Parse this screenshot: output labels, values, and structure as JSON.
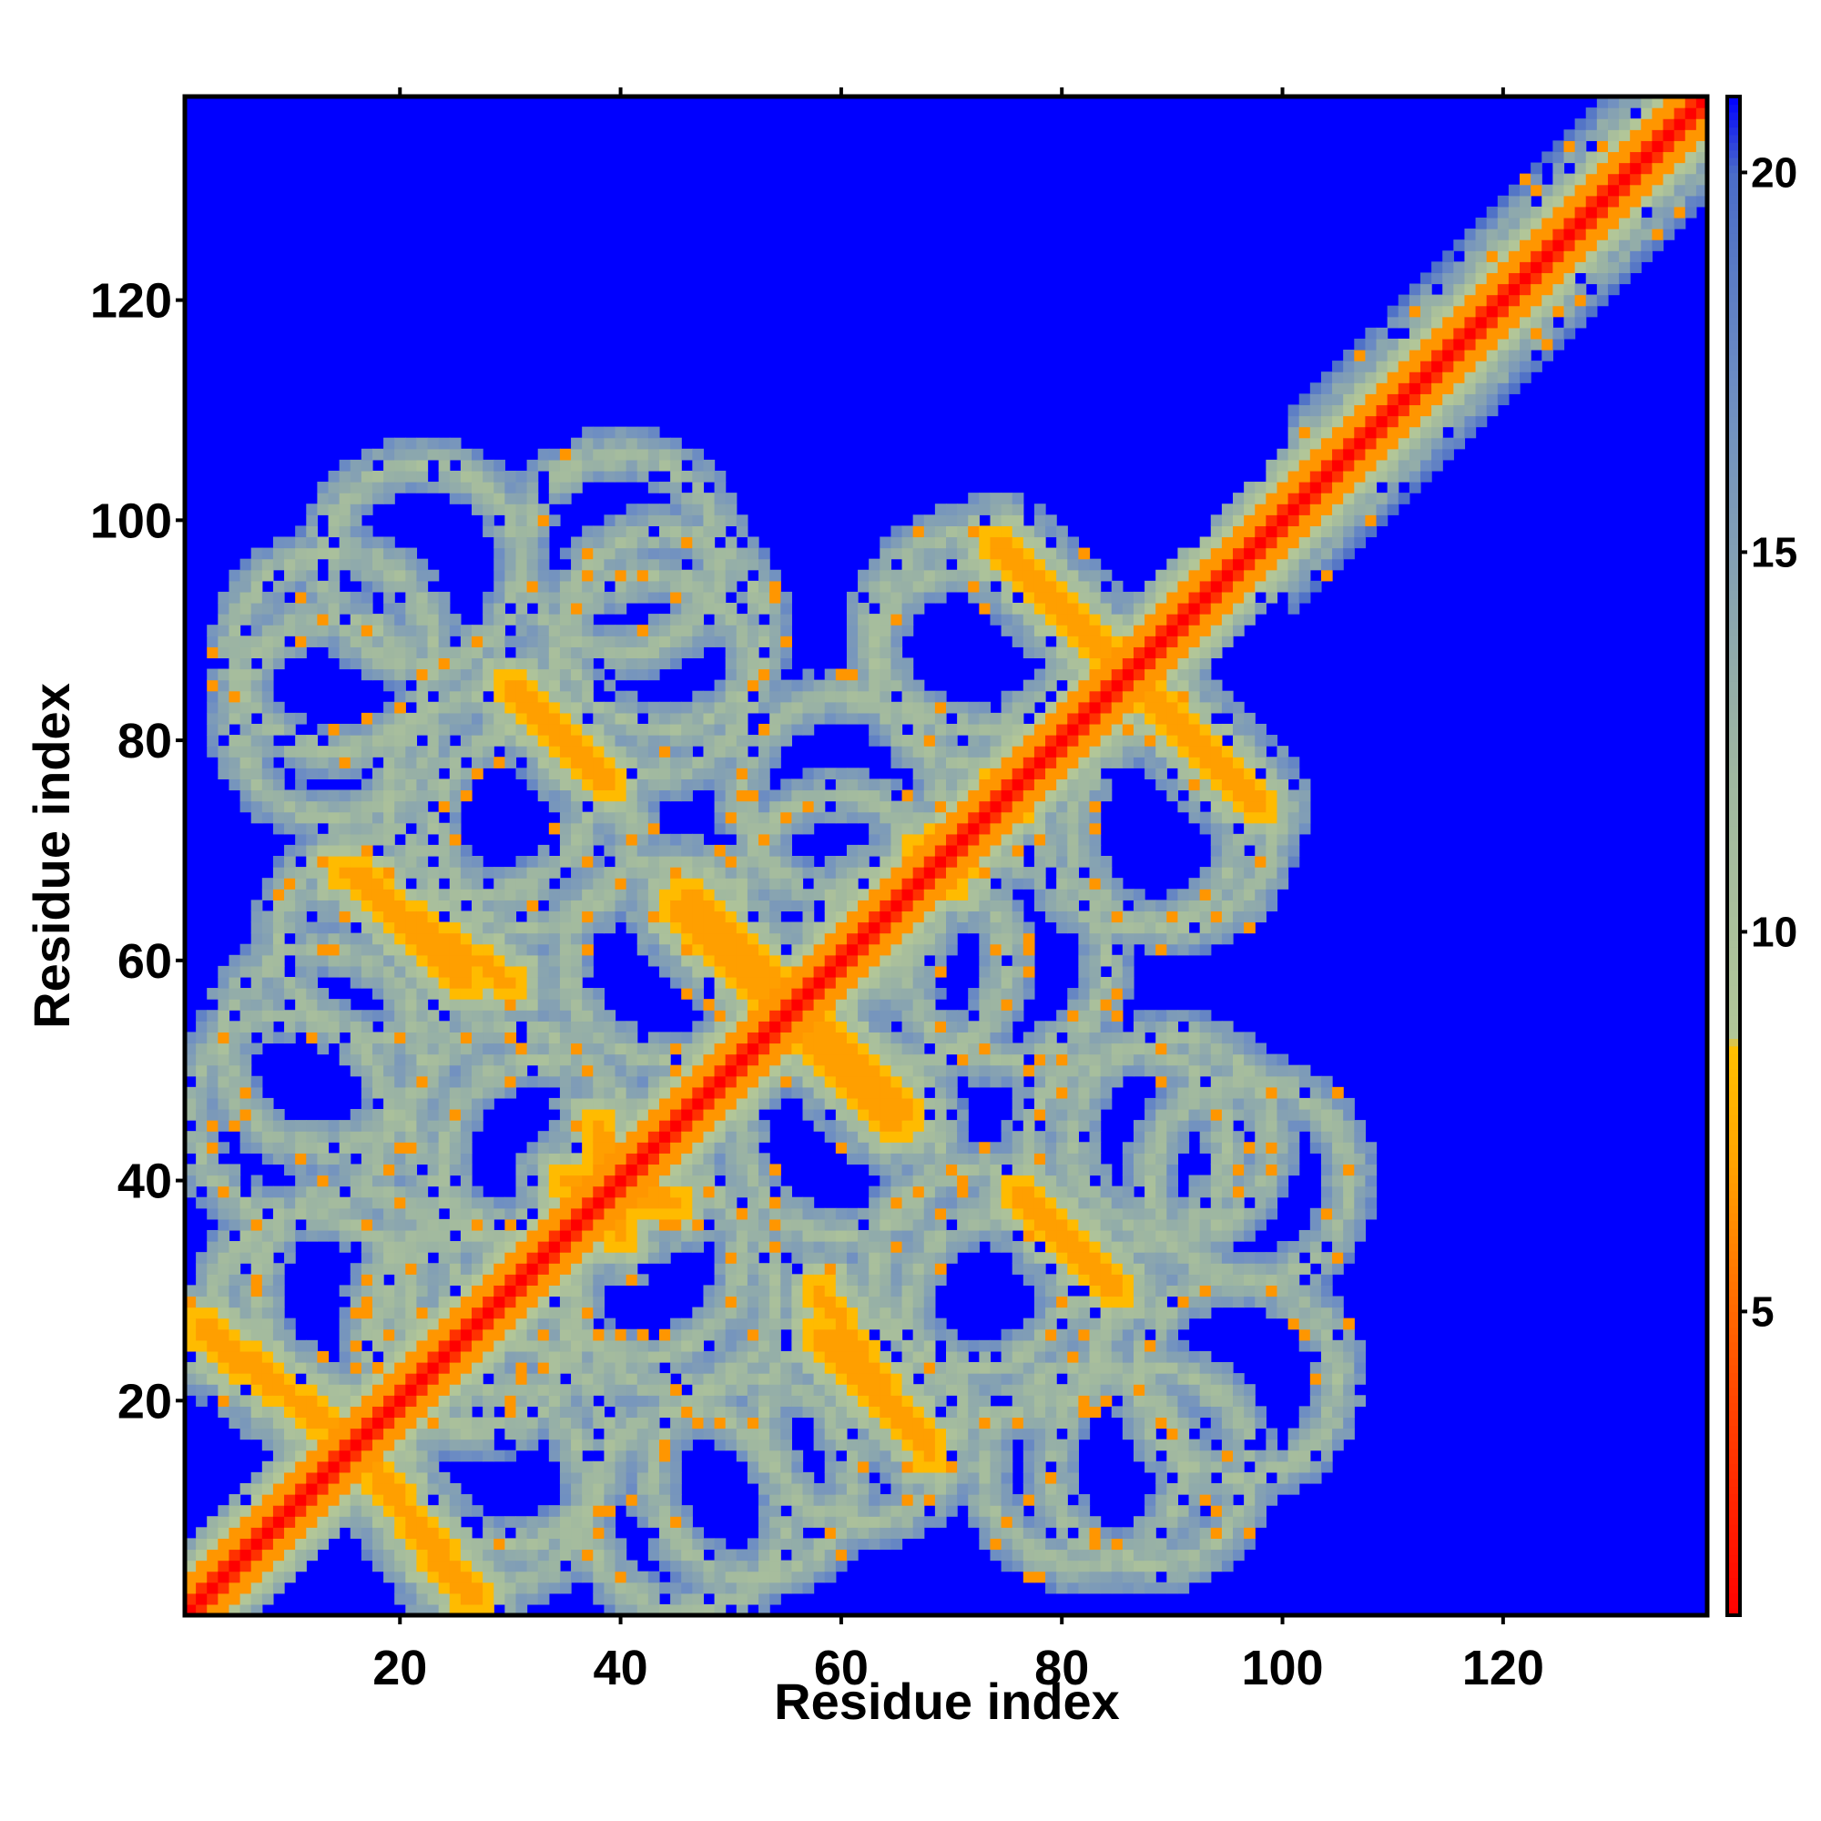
{
  "chart_data": {
    "type": "heatmap",
    "title": "",
    "xlabel": "Residue index",
    "ylabel": "Residue index",
    "xlim": [
      1,
      138
    ],
    "ylim": [
      1,
      138
    ],
    "n_residues": 138,
    "x_ticks": [
      20,
      40,
      60,
      80,
      100,
      120
    ],
    "y_ticks": [
      20,
      40,
      60,
      80,
      100,
      120
    ],
    "colorbar": {
      "range": [
        1,
        21
      ],
      "ticks": [
        5,
        10,
        15,
        20
      ],
      "stops": [
        {
          "value": 1,
          "color": "#ff0000"
        },
        {
          "value": 4,
          "color": "#ff4a00"
        },
        {
          "value": 7,
          "color": "#ffa500"
        },
        {
          "value": 8.5,
          "color": "#ffc000"
        },
        {
          "value": 8.6,
          "color": "#b2c698"
        },
        {
          "value": 12,
          "color": "#a0b8a0"
        },
        {
          "value": 17,
          "color": "#6f8fc2"
        },
        {
          "value": 20,
          "color": "#4a6cc8"
        },
        {
          "value": 21,
          "color": "#0000ff"
        }
      ]
    },
    "background_color": "#0000ff",
    "diagonal_band": {
      "from": 1,
      "to": 138
    },
    "contacts": [
      {
        "kind": "anti-diagonal",
        "from": [
          2,
          27
        ],
        "to": [
          16,
          16
        ]
      },
      {
        "kind": "anti-diagonal",
        "from": [
          16,
          16
        ],
        "to": [
          26,
          2
        ]
      },
      {
        "kind": "anti-diagonal",
        "from": [
          16,
          68
        ],
        "to": [
          26,
          58
        ]
      },
      {
        "kind": "anti-diagonal",
        "from": [
          30,
          85
        ],
        "to": [
          39,
          76
        ]
      },
      {
        "kind": "anti-diagonal",
        "from": [
          45,
          65
        ],
        "to": [
          54,
          56
        ]
      },
      {
        "kind": "anti-diagonal",
        "from": [
          56,
          56
        ],
        "to": [
          66,
          46
        ]
      },
      {
        "kind": "anti-diagonal",
        "from": [
          58,
          30
        ],
        "to": [
          68,
          15
        ]
      },
      {
        "kind": "anti-diagonal",
        "from": [
          74,
          98
        ],
        "to": [
          86,
          86
        ]
      },
      {
        "kind": "anti-diagonal",
        "from": [
          86,
          86
        ],
        "to": [
          98,
          74
        ]
      },
      {
        "kind": "anti-diagonal",
        "from": [
          76,
          39
        ],
        "to": [
          84,
          31
        ]
      },
      {
        "kind": "parallel",
        "from": [
          35,
          40
        ],
        "to": [
          45,
          38
        ]
      },
      {
        "kind": "parallel",
        "from": [
          67,
          70
        ],
        "to": [
          76,
          74
        ]
      }
    ],
    "shells": [
      {
        "center": [
          14,
          82
        ]
      },
      {
        "center": [
          32,
          72
        ]
      },
      {
        "center": [
          43,
          86
        ]
      },
      {
        "center": [
          60,
          66
        ]
      },
      {
        "center": [
          72,
          87
        ]
      },
      {
        "center": [
          90,
          72
        ]
      },
      {
        "center": [
          13,
          52
        ]
      },
      {
        "center": [
          33,
          42
        ]
      },
      {
        "center": [
          45,
          30
        ]
      },
      {
        "center": [
          26,
          27
        ]
      },
      {
        "center": [
          16,
          30
        ]
      },
      {
        "center": [
          28,
          12
        ]
      },
      {
        "center": [
          46,
          10
        ]
      },
      {
        "center": [
          62,
          18
        ]
      },
      {
        "center": [
          75,
          28
        ]
      },
      {
        "center": [
          60,
          44
        ]
      },
      {
        "center": [
          75,
          60
        ]
      },
      {
        "center": [
          90,
          44
        ]
      },
      {
        "center": [
          96,
          22
        ]
      },
      {
        "center": [
          88,
          14
        ]
      },
      {
        "center": [
          97,
          40
        ]
      }
    ],
    "legend": "none",
    "grid": false
  }
}
